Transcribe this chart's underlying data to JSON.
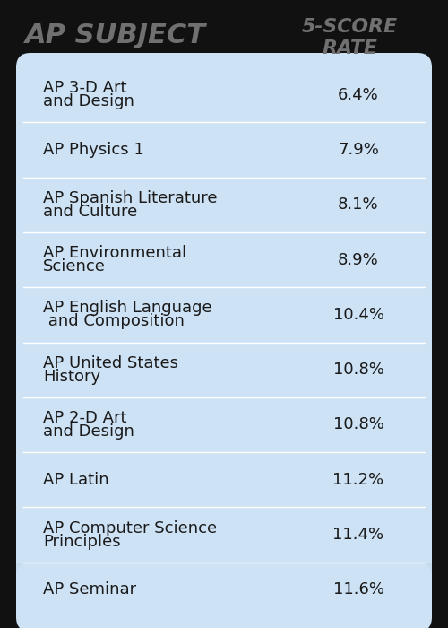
{
  "title_left": "AP SUBJECT",
  "title_right": "5-SCORE\nRATE",
  "rows": [
    {
      "subject": "AP 3-D Art\nand Design",
      "rate": "6.4%"
    },
    {
      "subject": "AP Physics 1",
      "rate": "7.9%"
    },
    {
      "subject": "AP Spanish Literature\nand Culture",
      "rate": "8.1%"
    },
    {
      "subject": "AP Environmental\nScience",
      "rate": "8.9%"
    },
    {
      "subject": "AP English Language\n and Composition",
      "rate": "10.4%"
    },
    {
      "subject": "AP United States\nHistory",
      "rate": "10.8%"
    },
    {
      "subject": "AP 2-D Art\nand Design",
      "rate": "10.8%"
    },
    {
      "subject": "AP Latin",
      "rate": "11.2%"
    },
    {
      "subject": "AP Computer Science\nPrinciples",
      "rate": "11.4%"
    },
    {
      "subject": "AP Seminar",
      "rate": "11.6%"
    }
  ],
  "bg_color": "#111111",
  "table_bg": "#c8dcf0",
  "row_bg": "#cee2f5",
  "divider_color": "#ffffff",
  "header_color": "#707070",
  "text_color": "#1a1a1a",
  "rate_color": "#1a1a1a",
  "header_fontsize": 22,
  "row_fontsize": 13,
  "rate_fontsize": 13
}
